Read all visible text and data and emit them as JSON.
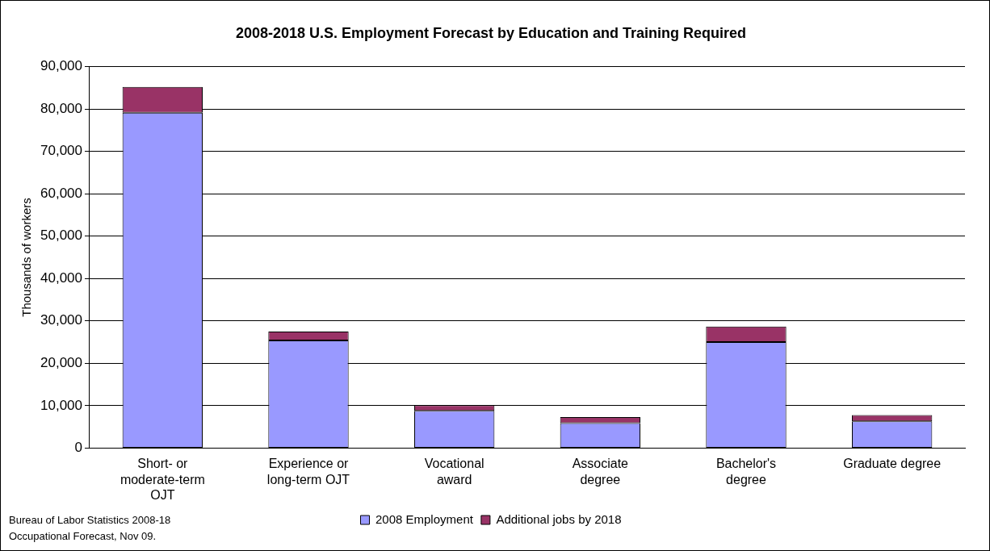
{
  "chart_data": {
    "type": "bar",
    "title": "2008-2018 U.S. Employment Forecast by Education and Training Required",
    "ylabel": "Thousands of workers",
    "categories": [
      "Short- or\nmoderate-term\nOJT",
      "Experience or\nlong-term OJT",
      "Vocational\naward",
      "Associate\ndegree",
      "Bachelor's\ndegree",
      "Graduate degree"
    ],
    "series": [
      {
        "name": "2008 Employment",
        "color": "#9999ff",
        "values": [
          79100,
          25400,
          8800,
          5900,
          25000,
          6300
        ]
      },
      {
        "name": "Additional jobs by 2018",
        "color": "#993366",
        "values": [
          6100,
          2100,
          1300,
          1400,
          3700,
          1500
        ]
      }
    ],
    "stacked": true,
    "ylim": [
      0,
      90000
    ],
    "yticks": [
      0,
      {
        "value": 10000,
        "label": "10,000"
      },
      {
        "value": 20000,
        "label": "20,000"
      },
      {
        "value": 30000,
        "label": "30,000"
      },
      {
        "value": 40000,
        "label": "40,000"
      },
      {
        "value": 50000,
        "label": "50,000"
      },
      {
        "value": 60000,
        "label": "60,000"
      },
      {
        "value": 70000,
        "label": "70,000"
      },
      {
        "value": 80000,
        "label": "80,000"
      },
      {
        "value": 90000,
        "label": "90,000"
      }
    ],
    "grid": "y",
    "legend": "bottom",
    "annotations": [
      "Bureau of Labor Statistics 2008-18\nOccupational Forecast, Nov 09."
    ]
  }
}
